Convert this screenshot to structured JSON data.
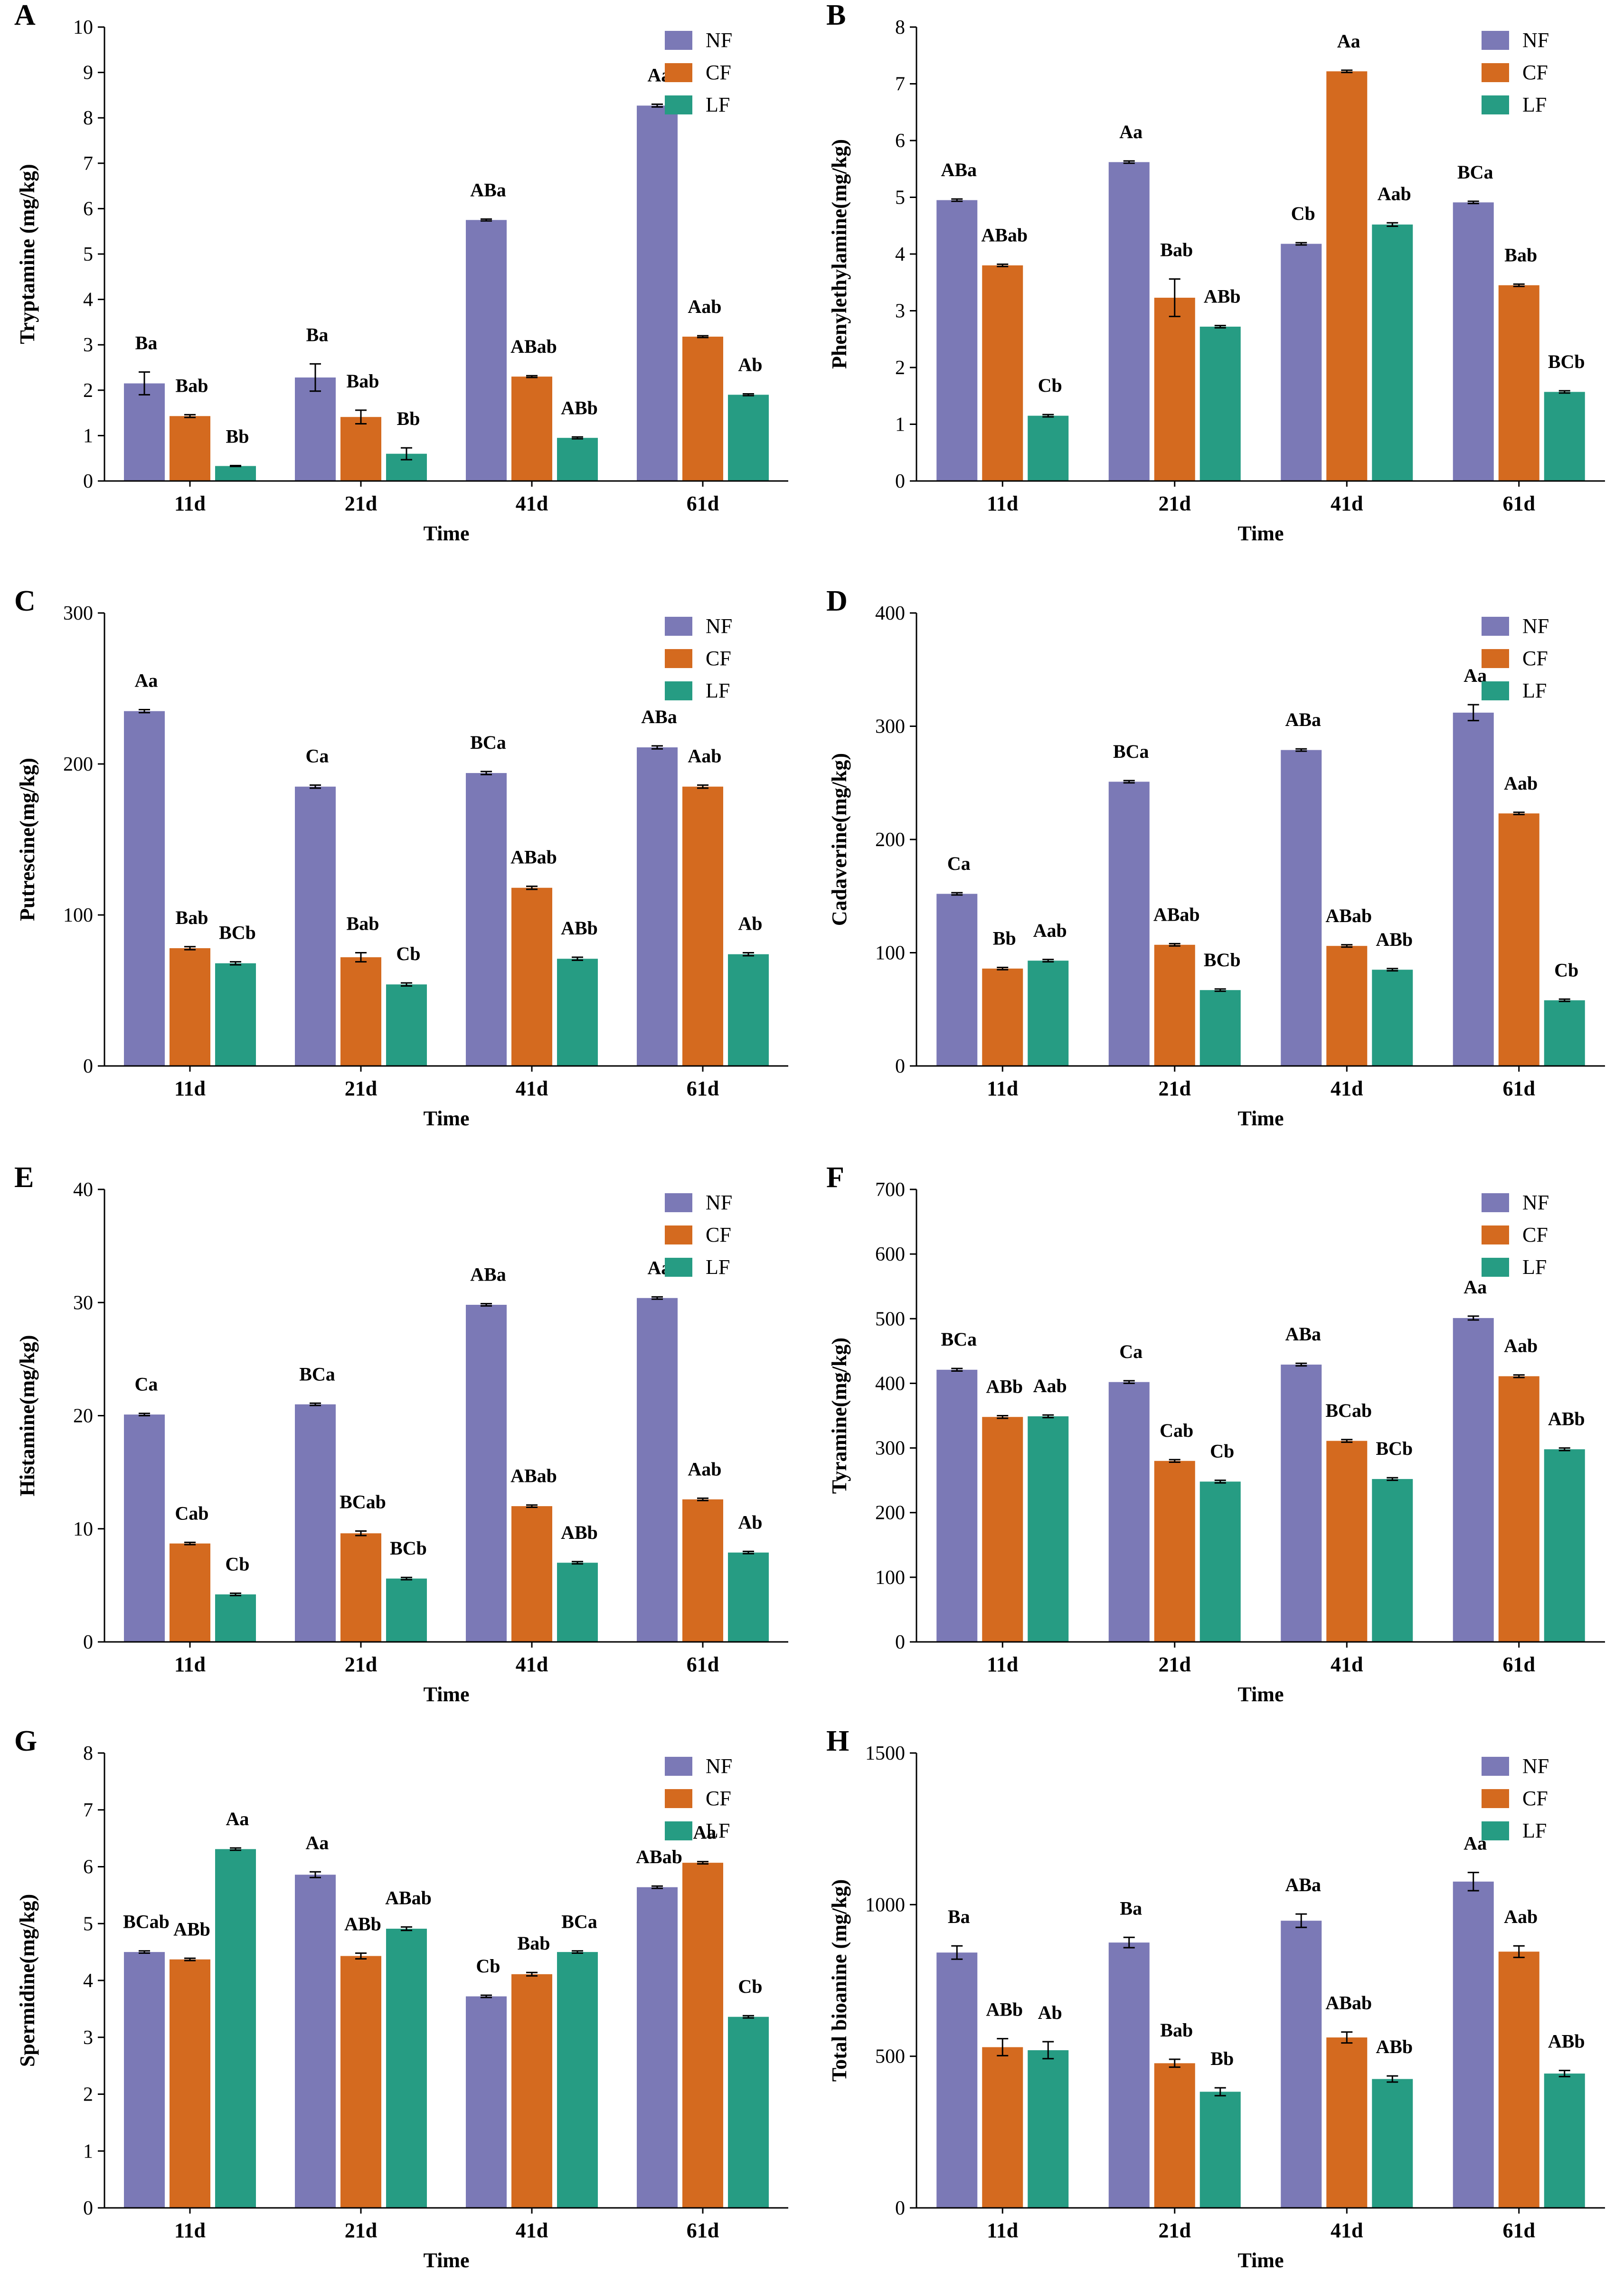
{
  "figure": {
    "legend": [
      "NF",
      "CF",
      "LF"
    ],
    "colors": {
      "NF": "#7b79b6",
      "CF": "#d46a1f",
      "LF": "#269c83"
    }
  },
  "chart_data": [
    {
      "panel": "A",
      "type": "bar",
      "title": "",
      "xlabel": "Time",
      "ylabel": "Tryptamine (mg/kg)",
      "categories": [
        "11d",
        "21d",
        "41d",
        "61d"
      ],
      "ylim": [
        0,
        10
      ],
      "yticks": [
        0,
        1,
        2,
        3,
        4,
        5,
        6,
        7,
        8,
        9,
        10
      ],
      "legend_position": "top-right",
      "series": [
        {
          "name": "NF",
          "values": [
            2.15,
            2.28,
            5.75,
            8.27
          ],
          "errors": [
            0.25,
            0.3,
            0.02,
            0.03
          ],
          "labels": [
            "Ba",
            "Ba",
            "ABa",
            "Aa"
          ]
        },
        {
          "name": "CF",
          "values": [
            1.43,
            1.41,
            2.3,
            3.18
          ],
          "errors": [
            0.03,
            0.15,
            0.02,
            0.02
          ],
          "labels": [
            "Bab",
            "Bab",
            "ABab",
            "Aab"
          ]
        },
        {
          "name": "LF",
          "values": [
            0.33,
            0.6,
            0.95,
            1.9
          ],
          "errors": [
            0.01,
            0.13,
            0.02,
            0.02
          ],
          "labels": [
            "Bb",
            "Bb",
            "ABb",
            "Ab"
          ]
        }
      ]
    },
    {
      "panel": "B",
      "type": "bar",
      "title": "",
      "xlabel": "Time",
      "ylabel": "Phenylethylamine(mg/kg)",
      "categories": [
        "11d",
        "21d",
        "41d",
        "61d"
      ],
      "ylim": [
        0,
        8
      ],
      "yticks": [
        0,
        1,
        2,
        3,
        4,
        5,
        6,
        7,
        8
      ],
      "legend_position": "top-right",
      "series": [
        {
          "name": "NF",
          "values": [
            4.95,
            5.62,
            4.18,
            4.91
          ],
          "errors": [
            0.02,
            0.02,
            0.02,
            0.02
          ],
          "labels": [
            "ABa",
            "Aa",
            "Cb",
            "BCa"
          ]
        },
        {
          "name": "CF",
          "values": [
            3.8,
            3.23,
            7.22,
            3.45
          ],
          "errors": [
            0.02,
            0.33,
            0.02,
            0.02
          ],
          "labels": [
            "ABab",
            "Bab",
            "Aa",
            "Bab"
          ]
        },
        {
          "name": "LF",
          "values": [
            1.15,
            2.72,
            4.52,
            1.57
          ],
          "errors": [
            0.02,
            0.02,
            0.03,
            0.02
          ],
          "labels": [
            "Cb",
            "ABb",
            "Aab",
            "BCb"
          ]
        }
      ]
    },
    {
      "panel": "C",
      "type": "bar",
      "title": "",
      "xlabel": "Time",
      "ylabel": "Putrescine(mg/kg)",
      "categories": [
        "11d",
        "21d",
        "41d",
        "61d"
      ],
      "ylim": [
        0,
        300
      ],
      "yticks": [
        0,
        100,
        200,
        300
      ],
      "legend_position": "top-right",
      "series": [
        {
          "name": "NF",
          "values": [
            235,
            185,
            194,
            211
          ],
          "errors": [
            1,
            1,
            1,
            1
          ],
          "labels": [
            "Aa",
            "Ca",
            "BCa",
            "ABa"
          ]
        },
        {
          "name": "CF",
          "values": [
            78,
            72,
            118,
            185
          ],
          "errors": [
            1,
            3,
            1,
            1
          ],
          "labels": [
            "Bab",
            "Bab",
            "ABab",
            "Aab"
          ]
        },
        {
          "name": "LF",
          "values": [
            68,
            54,
            71,
            74
          ],
          "errors": [
            1,
            1,
            1,
            1
          ],
          "labels": [
            "BCb",
            "Cb",
            "ABb",
            "Ab"
          ]
        }
      ]
    },
    {
      "panel": "D",
      "type": "bar",
      "title": "",
      "xlabel": "Time",
      "ylabel": "Cadaverine(mg/kg)",
      "categories": [
        "11d",
        "21d",
        "41d",
        "61d"
      ],
      "ylim": [
        0,
        400
      ],
      "yticks": [
        0,
        100,
        200,
        300,
        400
      ],
      "legend_position": "top-right",
      "series": [
        {
          "name": "NF",
          "values": [
            152,
            251,
            279,
            312
          ],
          "errors": [
            1,
            1,
            1,
            7
          ],
          "labels": [
            "Ca",
            "BCa",
            "ABa",
            "Aa"
          ]
        },
        {
          "name": "CF",
          "values": [
            86,
            107,
            106,
            223
          ],
          "errors": [
            1,
            1,
            1,
            1
          ],
          "labels": [
            "Bb",
            "ABab",
            "ABab",
            "Aab"
          ]
        },
        {
          "name": "LF",
          "values": [
            93,
            67,
            85,
            58
          ],
          "errors": [
            1,
            1,
            1,
            1
          ],
          "labels": [
            "Aab",
            "BCb",
            "ABb",
            "Cb"
          ]
        }
      ]
    },
    {
      "panel": "E",
      "type": "bar",
      "title": "",
      "xlabel": "Time",
      "ylabel": "Histamine(mg/kg)",
      "categories": [
        "11d",
        "21d",
        "41d",
        "61d"
      ],
      "ylim": [
        0,
        40
      ],
      "yticks": [
        0,
        10,
        20,
        30,
        40
      ],
      "legend_position": "top-right",
      "series": [
        {
          "name": "NF",
          "values": [
            20.1,
            21.0,
            29.8,
            30.4
          ],
          "errors": [
            0.1,
            0.1,
            0.1,
            0.1
          ],
          "labels": [
            "Ca",
            "BCa",
            "ABa",
            "Aa"
          ]
        },
        {
          "name": "CF",
          "values": [
            8.7,
            9.6,
            12.0,
            12.6
          ],
          "errors": [
            0.1,
            0.2,
            0.1,
            0.1
          ],
          "labels": [
            "Cab",
            "BCab",
            "ABab",
            "Aab"
          ]
        },
        {
          "name": "LF",
          "values": [
            4.2,
            5.6,
            7.0,
            7.9
          ],
          "errors": [
            0.1,
            0.1,
            0.1,
            0.1
          ],
          "labels": [
            "Cb",
            "BCb",
            "ABb",
            "Ab"
          ]
        }
      ]
    },
    {
      "panel": "F",
      "type": "bar",
      "title": "",
      "xlabel": "Time",
      "ylabel": "Tyramine(mg/kg)",
      "categories": [
        "11d",
        "21d",
        "41d",
        "61d"
      ],
      "ylim": [
        0,
        700
      ],
      "yticks": [
        0,
        100,
        200,
        300,
        400,
        500,
        600,
        700
      ],
      "legend_position": "top-right",
      "series": [
        {
          "name": "NF",
          "values": [
            421,
            402,
            429,
            501
          ],
          "errors": [
            2,
            2,
            2,
            3
          ],
          "labels": [
            "BCa",
            "Ca",
            "ABa",
            "Aa"
          ]
        },
        {
          "name": "CF",
          "values": [
            348,
            280,
            311,
            411
          ],
          "errors": [
            2,
            2,
            2,
            2
          ],
          "labels": [
            "ABb",
            "Cab",
            "BCab",
            "Aab"
          ]
        },
        {
          "name": "LF",
          "values": [
            349,
            248,
            252,
            298
          ],
          "errors": [
            2,
            2,
            2,
            2
          ],
          "labels": [
            "Aab",
            "Cb",
            "BCb",
            "ABb"
          ]
        }
      ]
    },
    {
      "panel": "G",
      "type": "bar",
      "title": "",
      "xlabel": "Time",
      "ylabel": "Spermidine(mg/kg)",
      "categories": [
        "11d",
        "21d",
        "41d",
        "61d"
      ],
      "ylim": [
        0,
        8
      ],
      "yticks": [
        0,
        1,
        2,
        3,
        4,
        5,
        6,
        7,
        8
      ],
      "legend_position": "top-right",
      "series": [
        {
          "name": "NF",
          "values": [
            4.5,
            5.86,
            3.72,
            5.64
          ],
          "errors": [
            0.02,
            0.05,
            0.02,
            0.02
          ],
          "labels": [
            "BCab",
            "Aa",
            "Cb",
            "ABab"
          ]
        },
        {
          "name": "CF",
          "values": [
            4.37,
            4.43,
            4.11,
            6.07
          ],
          "errors": [
            0.02,
            0.05,
            0.03,
            0.02
          ],
          "labels": [
            "ABb",
            "ABb",
            "Bab",
            "Aa"
          ]
        },
        {
          "name": "LF",
          "values": [
            6.31,
            4.91,
            4.5,
            3.36
          ],
          "errors": [
            0.02,
            0.03,
            0.02,
            0.02
          ],
          "labels": [
            "Aa",
            "ABab",
            "BCa",
            "Cb"
          ]
        }
      ]
    },
    {
      "panel": "H",
      "type": "bar",
      "title": "",
      "xlabel": "Time",
      "ylabel": "Total bioanine (mg/kg)",
      "categories": [
        "11d",
        "21d",
        "41d",
        "61d"
      ],
      "ylim": [
        0,
        1500
      ],
      "yticks": [
        0,
        500,
        1000,
        1500
      ],
      "legend_position": "top-right",
      "series": [
        {
          "name": "NF",
          "values": [
            842,
            875,
            947,
            1076
          ],
          "errors": [
            22,
            17,
            22,
            30
          ],
          "labels": [
            "Ba",
            "Ba",
            "ABa",
            "Aa"
          ]
        },
        {
          "name": "CF",
          "values": [
            530,
            477,
            562,
            845
          ],
          "errors": [
            28,
            13,
            18,
            19
          ],
          "labels": [
            "ABb",
            "Bab",
            "ABab",
            "Aab"
          ]
        },
        {
          "name": "LF",
          "values": [
            520,
            383,
            425,
            443
          ],
          "errors": [
            28,
            13,
            10,
            10
          ],
          "labels": [
            "Ab",
            "Bb",
            "ABb",
            "ABb"
          ]
        }
      ]
    }
  ]
}
